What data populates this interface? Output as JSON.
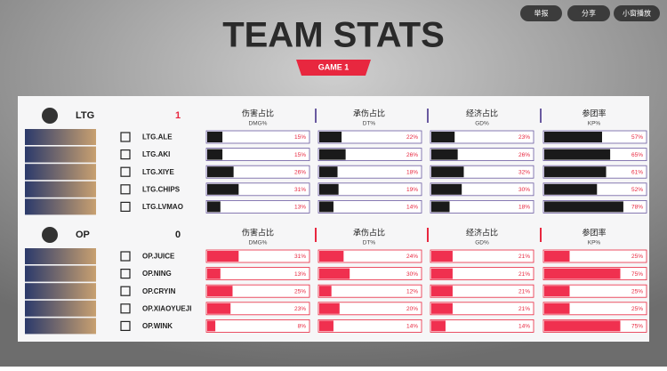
{
  "header": {
    "title": "TEAM STATS",
    "game": "GAME 1"
  },
  "controls": [
    "举报",
    "分享",
    "小窗播放"
  ],
  "columns": [
    {
      "name": "伤害占比",
      "sub": "DMG%"
    },
    {
      "name": "承伤占比",
      "sub": "DT%"
    },
    {
      "name": "经济占比",
      "sub": "GD%"
    },
    {
      "name": "参团率",
      "sub": "KP%"
    }
  ],
  "teams": [
    {
      "name": "LTG",
      "score": 1,
      "color": "#1a1a1a",
      "players": [
        {
          "name": "LTG.ALE",
          "stats": [
            {
              "value": 15,
              "label": "15%"
            },
            {
              "value": 22,
              "label": "22%"
            },
            {
              "value": 23,
              "label": "23%"
            },
            {
              "value": 57,
              "label": "57%"
            }
          ]
        },
        {
          "name": "LTG.AKI",
          "stats": [
            {
              "value": 15,
              "label": "15%"
            },
            {
              "value": 26,
              "label": "26%"
            },
            {
              "value": 26,
              "label": "26%"
            },
            {
              "value": 65,
              "label": "65%"
            }
          ]
        },
        {
          "name": "LTG.XIYE",
          "stats": [
            {
              "value": 26,
              "label": "26%"
            },
            {
              "value": 18,
              "label": "18%"
            },
            {
              "value": 32,
              "label": "32%"
            },
            {
              "value": 61,
              "label": "61%"
            }
          ]
        },
        {
          "name": "LTG.CHIPS",
          "stats": [
            {
              "value": 31,
              "label": "31%"
            },
            {
              "value": 19,
              "label": "19%"
            },
            {
              "value": 30,
              "label": "30%"
            },
            {
              "value": 52,
              "label": "52%"
            }
          ]
        },
        {
          "name": "LTG.LVMAO",
          "stats": [
            {
              "value": 13,
              "label": "13%"
            },
            {
              "value": 14,
              "label": "14%"
            },
            {
              "value": 18,
              "label": "18%"
            },
            {
              "value": 78,
              "label": "78%"
            }
          ]
        }
      ]
    },
    {
      "name": "OP",
      "score": 0,
      "color": "#f0304f",
      "players": [
        {
          "name": "OP.JUICE",
          "stats": [
            {
              "value": 31,
              "label": "31%"
            },
            {
              "value": 24,
              "label": "24%"
            },
            {
              "value": 21,
              "label": "21%"
            },
            {
              "value": 25,
              "label": "25%"
            }
          ]
        },
        {
          "name": "OP.NING",
          "stats": [
            {
              "value": 13,
              "label": "13%"
            },
            {
              "value": 30,
              "label": "30%"
            },
            {
              "value": 21,
              "label": "21%"
            },
            {
              "value": 75,
              "label": "75%"
            }
          ]
        },
        {
          "name": "OP.CRYIN",
          "stats": [
            {
              "value": 25,
              "label": "25%"
            },
            {
              "value": 12,
              "label": "12%"
            },
            {
              "value": 21,
              "label": "21%"
            },
            {
              "value": 25,
              "label": "25%"
            }
          ]
        },
        {
          "name": "OP.XIAOYUEJI",
          "stats": [
            {
              "value": 23,
              "label": "23%"
            },
            {
              "value": 20,
              "label": "20%"
            },
            {
              "value": 21,
              "label": "21%"
            },
            {
              "value": 25,
              "label": "25%"
            }
          ]
        },
        {
          "name": "OP.WINK",
          "stats": [
            {
              "value": 8,
              "label": "8%"
            },
            {
              "value": 14,
              "label": "14%"
            },
            {
              "value": 14,
              "label": "14%"
            },
            {
              "value": 75,
              "label": "75%"
            }
          ]
        }
      ]
    }
  ]
}
